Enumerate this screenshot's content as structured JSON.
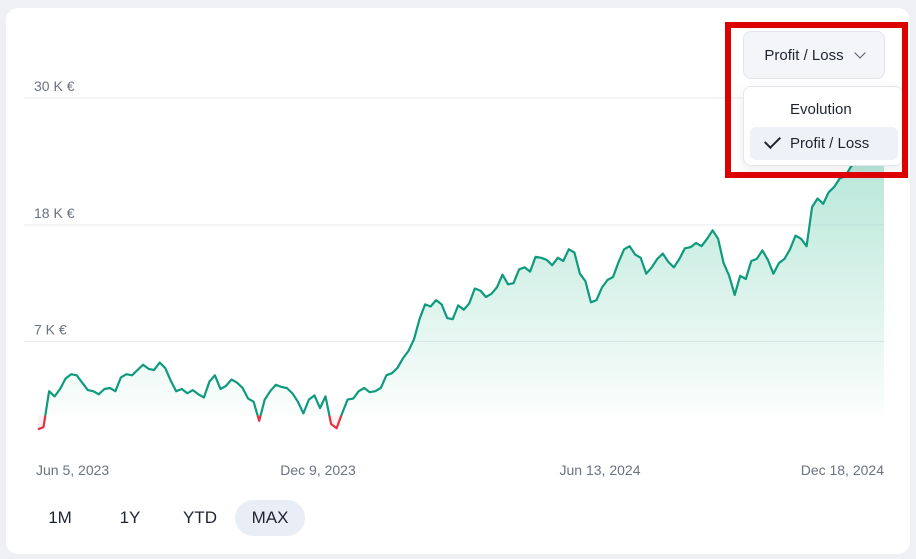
{
  "chart_data": {
    "type": "area",
    "y_ticks": [
      "30 K €",
      "18 K €",
      "7 K €"
    ],
    "y_tick_values": [
      30000,
      18000,
      7000
    ],
    "x_ticks": [
      "Jun 5, 2023",
      "Dec 9, 2023",
      "Jun 13, 2024",
      "Dec 18, 2024"
    ],
    "ylim": [
      -1500,
      35000
    ],
    "positive_color": "#0e9a7c",
    "negative_color": "#e5303f",
    "fill_color": "#5fc9a8",
    "grid": true,
    "values": [
      -1300,
      -1100,
      2300,
      1800,
      2500,
      3500,
      3900,
      3800,
      3100,
      2400,
      2300,
      2000,
      2500,
      2600,
      2300,
      3600,
      3900,
      3800,
      4300,
      4800,
      4400,
      4300,
      5000,
      4500,
      3300,
      2300,
      2500,
      2100,
      2400,
      2000,
      1700,
      3200,
      3800,
      2500,
      2800,
      3400,
      3100,
      2600,
      1600,
      1300,
      -500,
      1500,
      2300,
      2900,
      2700,
      2600,
      2100,
      1300,
      200,
      1500,
      1900,
      700,
      1800,
      -800,
      -1200,
      200,
      1500,
      1600,
      2300,
      2600,
      2200,
      2300,
      2600,
      3800,
      4000,
      4500,
      5400,
      6100,
      7200,
      9100,
      10500,
      10300,
      10900,
      10500,
      9200,
      9100,
      10400,
      10000,
      10600,
      12000,
      11800,
      11200,
      11500,
      12100,
      13300,
      12400,
      12500,
      13800,
      14000,
      13600,
      15000,
      14900,
      14700,
      14200,
      14900,
      14600,
      15700,
      15400,
      13400,
      12700,
      10700,
      10900,
      12100,
      12800,
      13100,
      14500,
      15700,
      16000,
      15200,
      14900,
      13400,
      14000,
      14800,
      15300,
      14500,
      14000,
      14800,
      15800,
      15900,
      16300,
      16000,
      16700,
      17500,
      16700,
      14400,
      13200,
      11400,
      13200,
      12900,
      14600,
      14800,
      15600,
      14700,
      13400,
      14400,
      14800,
      15700,
      17000,
      16700,
      16000,
      19700,
      20500,
      20000,
      21100,
      21600,
      22400,
      22600,
      23500,
      24000,
      24400,
      26000,
      27400,
      29000,
      30200
    ]
  },
  "dropdown": {
    "selected": "Profit / Loss",
    "options": [
      "Evolution",
      "Profit / Loss"
    ]
  },
  "range_tabs": [
    "1M",
    "1Y",
    "YTD",
    "MAX"
  ],
  "active_range": "MAX"
}
